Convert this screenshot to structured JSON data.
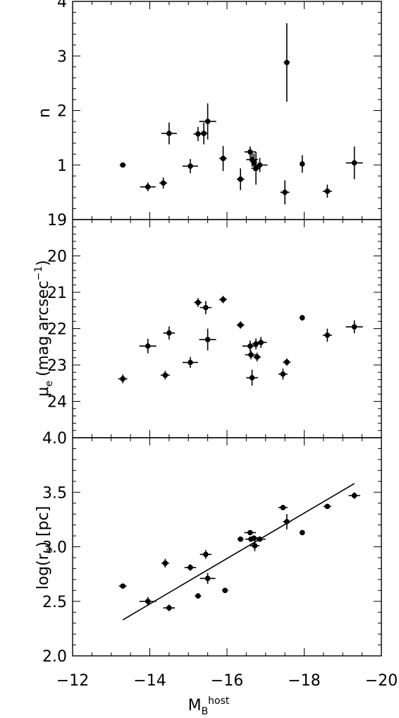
{
  "chart_data": {
    "type": "scatter",
    "xlabel": "M_B^host",
    "xlabel_parts": {
      "main": "M",
      "sub": "B",
      "sup": "host"
    },
    "xlim": [
      -12,
      -20
    ],
    "xticks": [
      "−12",
      "−14",
      "−16",
      "−18",
      "−20"
    ],
    "xtick_values": [
      -12,
      -14,
      -16,
      -18,
      -20
    ],
    "panels": [
      {
        "name": "n",
        "ylabel": "n",
        "ylim": [
          0,
          4
        ],
        "yticks": [
          "1",
          "2",
          "3",
          "4"
        ],
        "ytick_values": [
          1,
          2,
          3,
          4
        ],
        "points": [
          {
            "x": -13.3,
            "y": 1.0,
            "xerr": 0.08,
            "yerr": 0.04
          },
          {
            "x": -13.95,
            "y": 0.6,
            "xerr": 0.2,
            "yerr": 0.08
          },
          {
            "x": -14.35,
            "y": 0.67,
            "xerr": 0.1,
            "yerr": 0.1
          },
          {
            "x": -14.5,
            "y": 1.58,
            "xerr": 0.2,
            "yerr": 0.2
          },
          {
            "x": -15.05,
            "y": 0.98,
            "xerr": 0.2,
            "yerr": 0.13
          },
          {
            "x": -15.25,
            "y": 1.57,
            "xerr": 0.12,
            "yerr": 0.13
          },
          {
            "x": -15.4,
            "y": 1.58,
            "xerr": 0.1,
            "yerr": 0.2
          },
          {
            "x": -15.5,
            "y": 1.8,
            "xerr": 0.22,
            "yerr": 0.33
          },
          {
            "x": -15.9,
            "y": 1.12,
            "xerr": 0.1,
            "yerr": 0.23
          },
          {
            "x": -16.35,
            "y": 0.74,
            "xerr": 0.1,
            "yerr": 0.2
          },
          {
            "x": -16.6,
            "y": 1.24,
            "xerr": 0.15,
            "yerr": 0.1
          },
          {
            "x": -16.65,
            "y": 1.1,
            "xerr": 0.15,
            "yerr": 0.13
          },
          {
            "x": -16.7,
            "y": 1.05,
            "xerr": 0.08,
            "yerr": 0.16
          },
          {
            "x": -16.75,
            "y": 0.94,
            "xerr": 0.12,
            "yerr": 0.3
          },
          {
            "x": -16.85,
            "y": 1.0,
            "xerr": 0.2,
            "yerr": 0.13
          },
          {
            "x": -17.5,
            "y": 0.5,
            "xerr": 0.12,
            "yerr": 0.22
          },
          {
            "x": -17.55,
            "y": 2.88,
            "xerr": 0.08,
            "yerr": 0.72
          },
          {
            "x": -17.95,
            "y": 1.02,
            "xerr": 0.06,
            "yerr": 0.16
          },
          {
            "x": -18.6,
            "y": 0.52,
            "xerr": 0.12,
            "yerr": 0.12
          },
          {
            "x": -19.3,
            "y": 1.04,
            "xerr": 0.22,
            "yerr": 0.3
          }
        ]
      },
      {
        "name": "mu_e",
        "ylabel": "μe (mag arcsec−1)",
        "ylabel_parts": {
          "symbol": "μ",
          "sub": "e",
          "rest": "(mag arcsec",
          "sup": "−1",
          "close": ")"
        },
        "ylim": [
          25,
          19
        ],
        "yticks": [
          "19",
          "20",
          "21",
          "22",
          "23",
          "24"
        ],
        "ytick_values": [
          19,
          20,
          21,
          22,
          23,
          24
        ],
        "points": [
          {
            "x": -13.3,
            "y": 23.38,
            "xerr": 0.12,
            "yerr": 0.12
          },
          {
            "x": -13.95,
            "y": 22.48,
            "xerr": 0.22,
            "yerr": 0.2
          },
          {
            "x": -14.4,
            "y": 23.28,
            "xerr": 0.12,
            "yerr": 0.12
          },
          {
            "x": -14.5,
            "y": 22.12,
            "xerr": 0.15,
            "yerr": 0.18
          },
          {
            "x": -15.05,
            "y": 22.93,
            "xerr": 0.2,
            "yerr": 0.15
          },
          {
            "x": -15.25,
            "y": 21.28,
            "xerr": 0.1,
            "yerr": 0.12
          },
          {
            "x": -15.45,
            "y": 21.42,
            "xerr": 0.15,
            "yerr": 0.18
          },
          {
            "x": -15.5,
            "y": 22.3,
            "xerr": 0.22,
            "yerr": 0.3
          },
          {
            "x": -15.9,
            "y": 21.2,
            "xerr": 0.1,
            "yerr": 0.1
          },
          {
            "x": -16.35,
            "y": 21.9,
            "xerr": 0.1,
            "yerr": 0.1
          },
          {
            "x": -16.6,
            "y": 22.48,
            "xerr": 0.2,
            "yerr": 0.15
          },
          {
            "x": -16.62,
            "y": 22.72,
            "xerr": 0.15,
            "yerr": 0.12
          },
          {
            "x": -16.65,
            "y": 23.35,
            "xerr": 0.15,
            "yerr": 0.22
          },
          {
            "x": -16.75,
            "y": 22.42,
            "xerr": 0.1,
            "yerr": 0.15
          },
          {
            "x": -16.78,
            "y": 22.78,
            "xerr": 0.1,
            "yerr": 0.12
          },
          {
            "x": -16.88,
            "y": 22.38,
            "xerr": 0.15,
            "yerr": 0.15
          },
          {
            "x": -17.45,
            "y": 23.25,
            "xerr": 0.12,
            "yerr": 0.15
          },
          {
            "x": -17.55,
            "y": 22.92,
            "xerr": 0.1,
            "yerr": 0.1
          },
          {
            "x": -17.95,
            "y": 21.7,
            "xerr": 0.06,
            "yerr": 0.08
          },
          {
            "x": -18.6,
            "y": 22.18,
            "xerr": 0.12,
            "yerr": 0.18
          },
          {
            "x": -19.3,
            "y": 21.95,
            "xerr": 0.22,
            "yerr": 0.18
          }
        ]
      },
      {
        "name": "log_re",
        "ylabel": "log(re) [pc]",
        "ylabel_parts": {
          "pre": "log(r",
          "sub": "e",
          "post": ")  [pc]"
        },
        "ylim": [
          2.0,
          4.0
        ],
        "yticks": [
          "2.0",
          "2.5",
          "3.0",
          "3.5",
          "4.0"
        ],
        "ytick_values": [
          2.0,
          2.5,
          3.0,
          3.5,
          4.0
        ],
        "fit_line": {
          "x": [
            -13.3,
            -19.3
          ],
          "y": [
            2.33,
            3.58
          ]
        },
        "points": [
          {
            "x": -13.3,
            "y": 2.64,
            "xerr": 0.1,
            "yerr": 0.02
          },
          {
            "x": -13.95,
            "y": 2.5,
            "xerr": 0.22,
            "yerr": 0.04
          },
          {
            "x": -14.4,
            "y": 2.85,
            "xerr": 0.1,
            "yerr": 0.04
          },
          {
            "x": -14.5,
            "y": 2.44,
            "xerr": 0.15,
            "yerr": 0.03
          },
          {
            "x": -15.05,
            "y": 2.81,
            "xerr": 0.15,
            "yerr": 0.03
          },
          {
            "x": -15.25,
            "y": 2.55,
            "xerr": 0.08,
            "yerr": 0.02
          },
          {
            "x": -15.45,
            "y": 2.93,
            "xerr": 0.15,
            "yerr": 0.04
          },
          {
            "x": -15.5,
            "y": 2.71,
            "xerr": 0.2,
            "yerr": 0.05
          },
          {
            "x": -15.95,
            "y": 2.6,
            "xerr": 0.08,
            "yerr": 0.01
          },
          {
            "x": -16.35,
            "y": 3.07,
            "xerr": 0.08,
            "yerr": 0.01
          },
          {
            "x": -16.6,
            "y": 3.13,
            "xerr": 0.15,
            "yerr": 0.02
          },
          {
            "x": -16.62,
            "y": 3.07,
            "xerr": 0.15,
            "yerr": 0.02
          },
          {
            "x": -16.7,
            "y": 3.08,
            "xerr": 0.12,
            "yerr": 0.02
          },
          {
            "x": -16.72,
            "y": 3.01,
            "xerr": 0.12,
            "yerr": 0.05
          },
          {
            "x": -16.85,
            "y": 3.07,
            "xerr": 0.15,
            "yerr": 0.02
          },
          {
            "x": -17.45,
            "y": 3.36,
            "xerr": 0.12,
            "yerr": 0.01
          },
          {
            "x": -17.55,
            "y": 3.23,
            "xerr": 0.1,
            "yerr": 0.07
          },
          {
            "x": -17.95,
            "y": 3.13,
            "xerr": 0.06,
            "yerr": 0.01
          },
          {
            "x": -18.6,
            "y": 3.37,
            "xerr": 0.1,
            "yerr": 0.01
          },
          {
            "x": -19.3,
            "y": 3.47,
            "xerr": 0.15,
            "yerr": 0.03
          }
        ]
      }
    ]
  }
}
